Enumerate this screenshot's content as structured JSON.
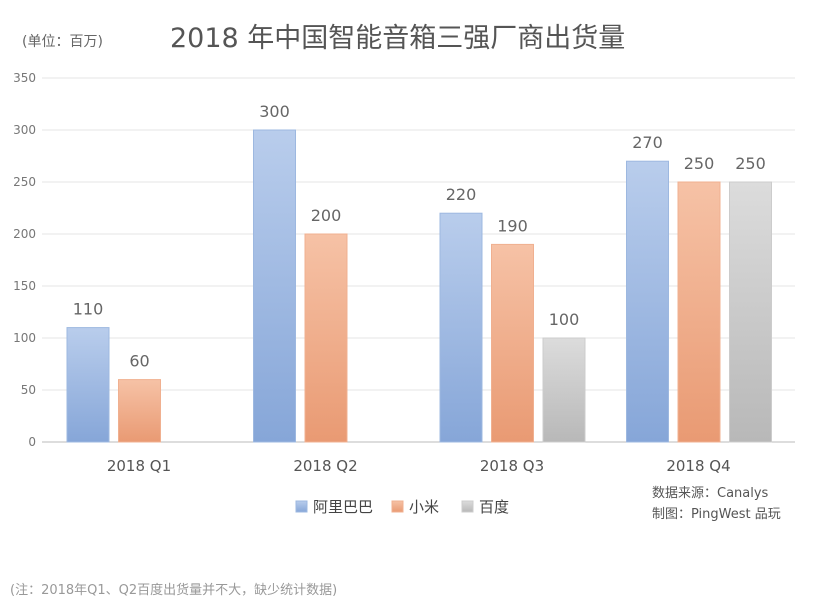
{
  "chart_data": {
    "type": "bar",
    "title": "2018 年中国智能音箱三强厂商出货量",
    "unit_label": "(单位：百万)",
    "categories": [
      "2018 Q1",
      "2018 Q2",
      "2018 Q3",
      "2018 Q4"
    ],
    "series": [
      {
        "name": "阿里巴巴",
        "values": [
          110,
          300,
          220,
          270
        ],
        "color": "#9db8e0"
      },
      {
        "name": "小米",
        "values": [
          60,
          200,
          190,
          250
        ],
        "color": "#f0b090"
      },
      {
        "name": "百度",
        "values": [
          null,
          null,
          100,
          250
        ],
        "color": "#cccccc"
      }
    ],
    "ylim": [
      0,
      350
    ],
    "yticks": [
      0,
      50,
      100,
      150,
      200,
      250,
      300,
      350
    ],
    "grid": true,
    "legend_position": "bottom-center"
  },
  "source_line1": "数据来源：Canalys",
  "source_line2": "制图：PingWest 品玩",
  "footnote": "(注：2018年Q1、Q2百度出货量并不大，缺少统计数据)"
}
